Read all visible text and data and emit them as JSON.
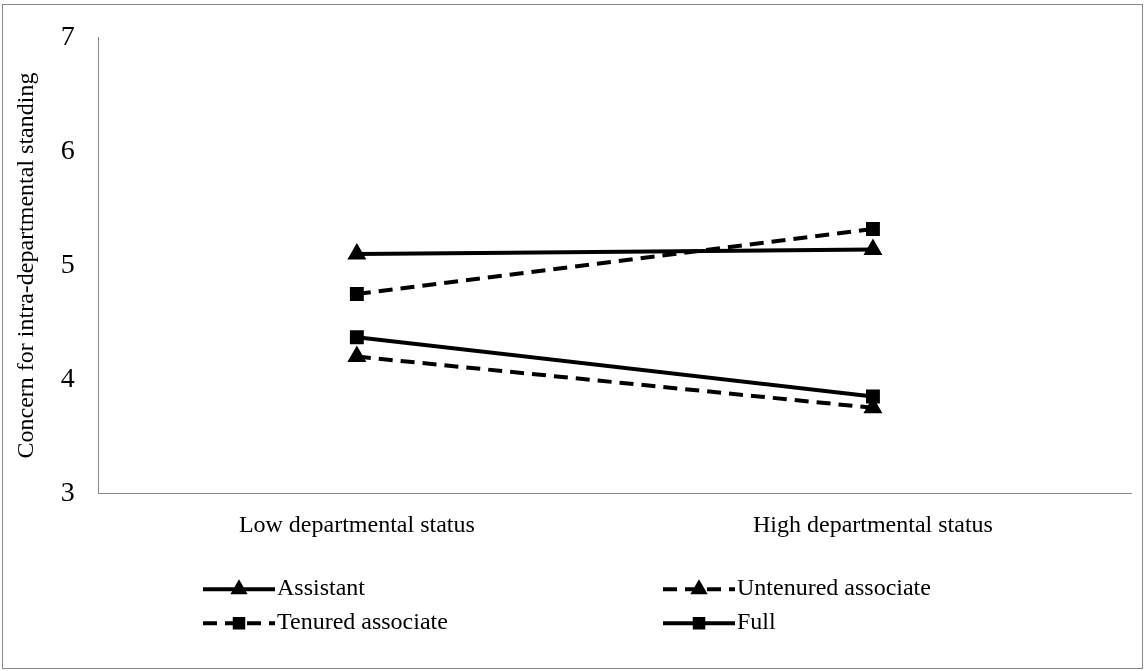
{
  "chart_data": {
    "type": "line",
    "ylabel": "Concern for intra-departmental standing",
    "categories": [
      "Low departmental status",
      "High departmental status"
    ],
    "series": [
      {
        "name": "Assistant",
        "color": "#000000",
        "values": [
          5.1,
          5.14
        ],
        "line_style": "solid",
        "marker": "triangle"
      },
      {
        "name": "Untenured associate",
        "color": "#000000",
        "values": [
          4.2,
          3.75
        ],
        "line_style": "dashed",
        "marker": "triangle"
      },
      {
        "name": "Tenured associate",
        "color": "#000000",
        "values": [
          4.75,
          5.32
        ],
        "line_style": "dashed",
        "marker": "square"
      },
      {
        "name": "Full",
        "color": "#000000",
        "values": [
          4.37,
          3.85
        ],
        "line_style": "solid",
        "marker": "square"
      }
    ],
    "ylim": [
      3,
      7
    ],
    "yticks": [
      3,
      4,
      5,
      6,
      7
    ],
    "grid": false,
    "legend": "bottom"
  }
}
